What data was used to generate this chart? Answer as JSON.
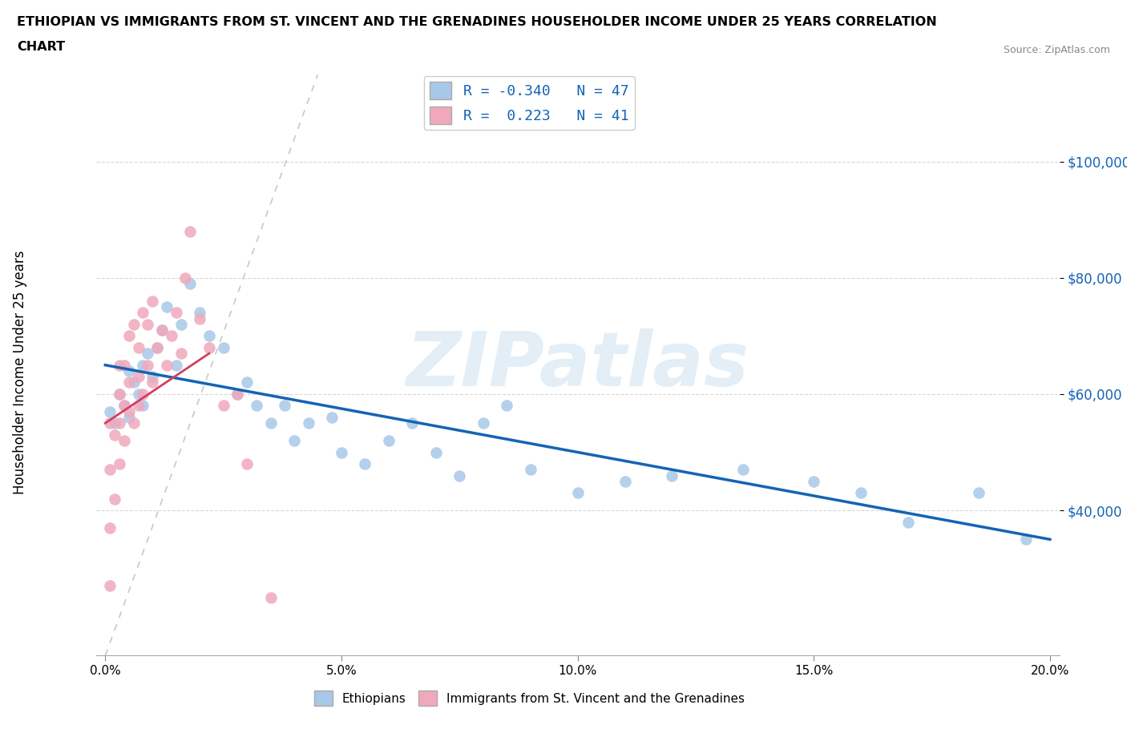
{
  "title_line1": "ETHIOPIAN VS IMMIGRANTS FROM ST. VINCENT AND THE GRENADINES HOUSEHOLDER INCOME UNDER 25 YEARS CORRELATION",
  "title_line2": "CHART",
  "source": "Source: ZipAtlas.com",
  "ylabel": "Householder Income Under 25 years",
  "xlabel_ticks": [
    "0.0%",
    "5.0%",
    "10.0%",
    "15.0%",
    "20.0%"
  ],
  "ytick_labels": [
    "$40,000",
    "$60,000",
    "$80,000",
    "$100,000"
  ],
  "xlim": [
    -0.002,
    0.202
  ],
  "ylim": [
    15000,
    115000
  ],
  "blue_R": -0.34,
  "blue_N": 47,
  "pink_R": 0.223,
  "pink_N": 41,
  "blue_color": "#a8c8e8",
  "pink_color": "#f0a8bc",
  "blue_line_color": "#1464b4",
  "pink_line_color": "#d04060",
  "ref_line_color": "#c8c8c8",
  "grid_color": "#d8d8d8",
  "watermark_color": "#cce0f0",
  "blue_scatter_x": [
    0.001,
    0.002,
    0.003,
    0.004,
    0.005,
    0.005,
    0.006,
    0.007,
    0.008,
    0.008,
    0.009,
    0.01,
    0.011,
    0.012,
    0.013,
    0.015,
    0.016,
    0.018,
    0.02,
    0.022,
    0.025,
    0.028,
    0.03,
    0.032,
    0.035,
    0.038,
    0.04,
    0.043,
    0.048,
    0.05,
    0.055,
    0.06,
    0.065,
    0.07,
    0.075,
    0.08,
    0.085,
    0.09,
    0.1,
    0.11,
    0.12,
    0.135,
    0.15,
    0.16,
    0.17,
    0.185,
    0.195
  ],
  "blue_scatter_y": [
    57000,
    55000,
    60000,
    58000,
    64000,
    56000,
    62000,
    60000,
    65000,
    58000,
    67000,
    63000,
    68000,
    71000,
    75000,
    65000,
    72000,
    79000,
    74000,
    70000,
    68000,
    60000,
    62000,
    58000,
    55000,
    58000,
    52000,
    55000,
    56000,
    50000,
    48000,
    52000,
    55000,
    50000,
    46000,
    55000,
    58000,
    47000,
    43000,
    45000,
    46000,
    47000,
    45000,
    43000,
    38000,
    43000,
    35000
  ],
  "pink_scatter_x": [
    0.001,
    0.001,
    0.001,
    0.001,
    0.002,
    0.002,
    0.003,
    0.003,
    0.003,
    0.003,
    0.004,
    0.004,
    0.004,
    0.005,
    0.005,
    0.005,
    0.006,
    0.006,
    0.007,
    0.007,
    0.007,
    0.008,
    0.008,
    0.009,
    0.009,
    0.01,
    0.01,
    0.011,
    0.012,
    0.013,
    0.014,
    0.015,
    0.016,
    0.017,
    0.018,
    0.02,
    0.022,
    0.025,
    0.028,
    0.03,
    0.035
  ],
  "pink_scatter_y": [
    27000,
    37000,
    47000,
    55000,
    42000,
    53000,
    48000,
    55000,
    60000,
    65000,
    52000,
    58000,
    65000,
    57000,
    62000,
    70000,
    55000,
    72000,
    58000,
    63000,
    68000,
    60000,
    74000,
    65000,
    72000,
    62000,
    76000,
    68000,
    71000,
    65000,
    70000,
    74000,
    67000,
    80000,
    88000,
    73000,
    68000,
    58000,
    60000,
    48000,
    25000
  ],
  "blue_line_x0": 0.0,
  "blue_line_x1": 0.2,
  "blue_line_y0": 65000,
  "blue_line_y1": 35000,
  "pink_line_x0": 0.0,
  "pink_line_x1": 0.022,
  "pink_line_y0": 55000,
  "pink_line_y1": 67000,
  "ref_line_x0": 0.0,
  "ref_line_x1": 0.045,
  "ref_line_y0": 15000,
  "ref_line_y1": 115000
}
